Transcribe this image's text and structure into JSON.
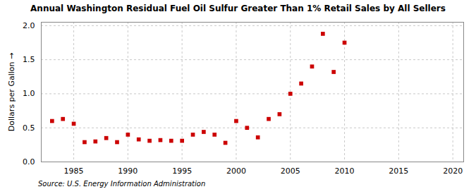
{
  "chart_data": {
    "type": "scatter",
    "title": "Annual Washington Residual Fuel Oil Sulfur Greater Than 1% Retail Sales by All Sellers",
    "ylabel": "Dollars per Gallon",
    "source": "Source: U.S. Energy Information Administration",
    "x": [
      1983,
      1984,
      1985,
      1986,
      1987,
      1988,
      1989,
      1990,
      1991,
      1992,
      1993,
      1994,
      1995,
      1996,
      1997,
      1998,
      1999,
      2000,
      2001,
      2002,
      2003,
      2004,
      2005,
      2006,
      2007,
      2008,
      2009,
      2010
    ],
    "values": [
      0.6,
      0.63,
      0.56,
      0.29,
      0.3,
      0.35,
      0.29,
      0.4,
      0.33,
      0.31,
      0.32,
      0.31,
      0.31,
      0.4,
      0.44,
      0.4,
      0.28,
      0.6,
      0.5,
      0.36,
      0.63,
      0.7,
      1.0,
      1.15,
      1.4,
      1.88,
      1.32,
      1.75
    ],
    "color": "#cc0000",
    "marker": "square",
    "xlim": [
      1982,
      2021
    ],
    "ylim": [
      0.0,
      2.05
    ],
    "xticks": [
      1985,
      1990,
      1995,
      2000,
      2005,
      2010,
      2015,
      2020
    ],
    "yticks": [
      {
        "value": 0.0,
        "label": "0.0"
      },
      {
        "value": 0.5,
        "label": "0.5"
      },
      {
        "value": 1.0,
        "label": "1.0"
      },
      {
        "value": 1.5,
        "label": "1.5"
      },
      {
        "value": 2.0,
        "label": "2.0"
      }
    ],
    "grid": true
  }
}
